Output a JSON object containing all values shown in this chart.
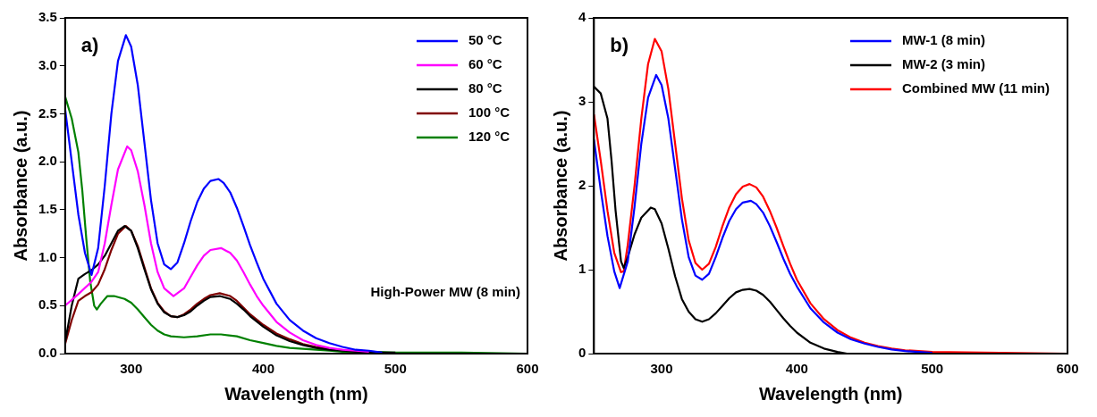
{
  "chart_data": [
    {
      "type": "line",
      "xlabel": "Wavelength (nm)",
      "ylabel": "Absorbance (a.u.)",
      "xlim": [
        250,
        600
      ],
      "xticks": [
        300,
        400,
        500,
        600
      ],
      "ylim": [
        0,
        3.5
      ],
      "yticks": [
        {
          "value": 0,
          "label": "0.0"
        },
        0.5,
        {
          "value": 1,
          "label": "1.0"
        },
        1.5,
        {
          "value": 2,
          "label": "2.0"
        },
        2.5,
        {
          "value": 3,
          "label": "3.0"
        },
        3.5
      ],
      "legend": "top right",
      "marker": "none",
      "annotations": [
        "a)",
        "High-Power MW (8 min)"
      ],
      "series": [
        {
          "name": "50 °C",
          "color": "#0000ff",
          "x": [
            250,
            255,
            260,
            265,
            270,
            275,
            280,
            285,
            290,
            296,
            300,
            305,
            310,
            315,
            320,
            325,
            330,
            335,
            340,
            345,
            350,
            355,
            360,
            366,
            370,
            375,
            380,
            385,
            390,
            395,
            400,
            410,
            420,
            430,
            440,
            450,
            460,
            470,
            480,
            490
          ],
          "values": [
            2.55,
            2.0,
            1.45,
            1.05,
            0.82,
            1.1,
            1.75,
            2.5,
            3.05,
            3.32,
            3.2,
            2.8,
            2.2,
            1.6,
            1.15,
            0.93,
            0.88,
            0.95,
            1.15,
            1.38,
            1.58,
            1.72,
            1.8,
            1.82,
            1.78,
            1.68,
            1.52,
            1.33,
            1.13,
            0.95,
            0.78,
            0.52,
            0.35,
            0.24,
            0.16,
            0.11,
            0.07,
            0.04,
            0.03,
            0.01
          ]
        },
        {
          "name": "60 °C",
          "color": "#ff00ff",
          "x": [
            250,
            260,
            270,
            275,
            280,
            285,
            290,
            297,
            300,
            305,
            310,
            315,
            320,
            325,
            332,
            340,
            345,
            350,
            355,
            360,
            368,
            375,
            380,
            385,
            390,
            395,
            400,
            410,
            420,
            430,
            440,
            450,
            460,
            470,
            480
          ],
          "values": [
            0.5,
            0.62,
            0.75,
            0.85,
            1.15,
            1.55,
            1.92,
            2.16,
            2.12,
            1.9,
            1.55,
            1.15,
            0.85,
            0.68,
            0.6,
            0.68,
            0.8,
            0.92,
            1.02,
            1.08,
            1.1,
            1.05,
            0.97,
            0.85,
            0.72,
            0.6,
            0.5,
            0.33,
            0.22,
            0.14,
            0.09,
            0.06,
            0.04,
            0.03,
            0.02
          ]
        },
        {
          "name": "80 °C",
          "color": "#000000",
          "x": [
            250,
            255,
            260,
            265,
            270,
            275,
            280,
            285,
            290,
            295,
            300,
            305,
            310,
            315,
            320,
            325,
            330,
            335,
            340,
            345,
            350,
            355,
            360,
            367,
            375,
            380,
            385,
            390,
            400,
            410,
            420,
            430,
            440,
            450,
            460,
            470,
            480,
            500
          ],
          "values": [
            0.12,
            0.5,
            0.78,
            0.83,
            0.87,
            0.93,
            1.02,
            1.15,
            1.28,
            1.33,
            1.28,
            1.1,
            0.88,
            0.67,
            0.52,
            0.43,
            0.39,
            0.38,
            0.4,
            0.44,
            0.5,
            0.55,
            0.59,
            0.6,
            0.57,
            0.52,
            0.46,
            0.39,
            0.28,
            0.19,
            0.13,
            0.09,
            0.06,
            0.04,
            0.03,
            0.02,
            0.01,
            0.01
          ]
        },
        {
          "name": "100 °C",
          "color": "#800000",
          "x": [
            250,
            255,
            260,
            265,
            270,
            275,
            280,
            285,
            290,
            296,
            300,
            305,
            310,
            315,
            320,
            325,
            330,
            335,
            340,
            345,
            350,
            355,
            360,
            367,
            375,
            380,
            385,
            390,
            400,
            410,
            420,
            430,
            440,
            450
          ],
          "values": [
            0.1,
            0.35,
            0.55,
            0.6,
            0.64,
            0.72,
            0.88,
            1.08,
            1.25,
            1.33,
            1.28,
            1.12,
            0.9,
            0.68,
            0.53,
            0.44,
            0.39,
            0.38,
            0.41,
            0.46,
            0.52,
            0.57,
            0.61,
            0.63,
            0.6,
            0.55,
            0.48,
            0.41,
            0.3,
            0.21,
            0.15,
            0.1,
            0.07,
            0.05
          ]
        },
        {
          "name": "120 °C",
          "color": "#008000",
          "x": [
            250,
            255,
            260,
            263,
            266,
            269,
            272,
            274,
            277,
            282,
            287,
            295,
            300,
            305,
            310,
            315,
            320,
            325,
            330,
            340,
            350,
            360,
            368,
            380,
            390,
            400,
            410,
            420,
            430,
            440,
            450,
            460,
            480,
            500,
            550,
            600
          ],
          "values": [
            2.68,
            2.45,
            2.1,
            1.7,
            1.2,
            0.75,
            0.5,
            0.46,
            0.52,
            0.6,
            0.6,
            0.57,
            0.53,
            0.46,
            0.38,
            0.3,
            0.24,
            0.2,
            0.18,
            0.17,
            0.18,
            0.2,
            0.2,
            0.18,
            0.14,
            0.11,
            0.08,
            0.06,
            0.05,
            0.04,
            0.03,
            0.02,
            0.02,
            0.01,
            0.01,
            0
          ]
        }
      ]
    },
    {
      "type": "line",
      "xlabel": "Wavelength (nm)",
      "ylabel": "Absorbance (a.u.)",
      "xlim": [
        250,
        600
      ],
      "xticks": [
        300,
        400,
        500,
        600
      ],
      "ylim": [
        0,
        4
      ],
      "yticks": [
        0,
        1,
        2,
        3,
        4
      ],
      "legend": "top right",
      "marker": "none",
      "annotations": [
        "b)"
      ],
      "series": [
        {
          "name": "MW-1 (8 min)",
          "color": "#0000ff",
          "x": [
            250,
            255,
            260,
            265,
            269,
            275,
            280,
            285,
            290,
            296,
            300,
            305,
            310,
            315,
            320,
            325,
            330,
            335,
            340,
            345,
            350,
            355,
            360,
            366,
            370,
            375,
            380,
            385,
            390,
            395,
            400,
            410,
            420,
            430,
            440,
            450,
            460,
            470,
            480,
            490,
            500
          ],
          "values": [
            2.55,
            1.95,
            1.4,
            0.98,
            0.78,
            1.1,
            1.75,
            2.5,
            3.05,
            3.32,
            3.2,
            2.8,
            2.2,
            1.6,
            1.15,
            0.93,
            0.88,
            0.95,
            1.15,
            1.38,
            1.58,
            1.72,
            1.8,
            1.82,
            1.78,
            1.68,
            1.52,
            1.33,
            1.13,
            0.95,
            0.8,
            0.54,
            0.37,
            0.25,
            0.17,
            0.12,
            0.08,
            0.05,
            0.03,
            0.02,
            0.01
          ]
        },
        {
          "name": "MW-2 (3 min)",
          "color": "#000000",
          "x": [
            250,
            255,
            260,
            263,
            266,
            270,
            272,
            275,
            280,
            285,
            292,
            295,
            300,
            305,
            310,
            315,
            320,
            325,
            330,
            335,
            340,
            345,
            350,
            355,
            360,
            365,
            370,
            375,
            380,
            385,
            390,
            395,
            400,
            410,
            420,
            430,
            437
          ],
          "values": [
            3.18,
            3.1,
            2.8,
            2.3,
            1.7,
            1.1,
            1.02,
            1.15,
            1.42,
            1.62,
            1.74,
            1.72,
            1.55,
            1.25,
            0.92,
            0.65,
            0.5,
            0.41,
            0.38,
            0.41,
            0.48,
            0.57,
            0.66,
            0.73,
            0.76,
            0.77,
            0.75,
            0.7,
            0.62,
            0.52,
            0.42,
            0.33,
            0.25,
            0.13,
            0.06,
            0.02,
            0
          ]
        },
        {
          "name": "Combined MW (11 min)",
          "color": "#ff0000",
          "x": [
            250,
            255,
            260,
            265,
            270,
            272,
            275,
            280,
            285,
            290,
            295,
            300,
            305,
            310,
            315,
            320,
            325,
            330,
            335,
            340,
            345,
            350,
            355,
            360,
            365,
            370,
            375,
            380,
            385,
            390,
            395,
            400,
            410,
            420,
            430,
            440,
            450,
            460,
            470,
            480,
            490,
            500,
            550,
            600
          ],
          "values": [
            2.85,
            2.3,
            1.7,
            1.2,
            0.97,
            0.98,
            1.3,
            2.0,
            2.8,
            3.45,
            3.75,
            3.6,
            3.15,
            2.5,
            1.85,
            1.35,
            1.08,
            1.0,
            1.07,
            1.27,
            1.52,
            1.74,
            1.9,
            1.99,
            2.02,
            1.98,
            1.87,
            1.7,
            1.5,
            1.28,
            1.07,
            0.88,
            0.6,
            0.41,
            0.28,
            0.19,
            0.13,
            0.09,
            0.06,
            0.04,
            0.03,
            0.02,
            0.01,
            0
          ]
        }
      ]
    }
  ]
}
